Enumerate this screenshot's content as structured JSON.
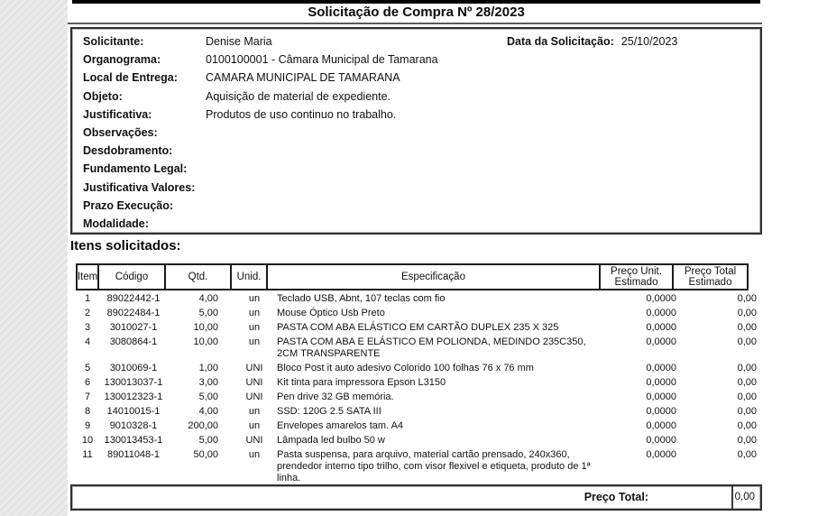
{
  "title": "Solicitação de Compra Nº 28/2023",
  "header": {
    "fields": [
      {
        "label": "Solicitante:",
        "value": "Denise Maria"
      },
      {
        "label": "Organograma:",
        "value": "0100100001 - Câmara Municipal de Tamarana"
      },
      {
        "label": "Local de Entrega:",
        "value": "CAMARA MUNICIPAL DE TAMARANA"
      },
      {
        "label": "Objeto:",
        "value": "Aquisição de material de expediente."
      },
      {
        "label": "Justificativa:",
        "value": "Produtos de uso continuo no trabalho."
      },
      {
        "label": "Observações:",
        "value": ""
      },
      {
        "label": "Desdobramento:",
        "value": ""
      },
      {
        "label": "Fundamento Legal:",
        "value": ""
      },
      {
        "label": "Justificativa Valores:",
        "value": ""
      },
      {
        "label": "Prazo Execução:",
        "value": ""
      },
      {
        "label": "Modalidade:",
        "value": ""
      }
    ],
    "date_label": "Data da Solicitação:",
    "date_value": "25/10/2023"
  },
  "items": {
    "heading": "Itens solicitados:",
    "columns": {
      "item": "Item",
      "codigo": "Código",
      "qtd": "Qtd.",
      "unid": "Unid.",
      "espec": "Especificação",
      "punit_l1": "Preço Unit.",
      "punit_l2": "Estimado",
      "ptotal_l1": "Preço Total",
      "ptotal_l2": "Estimado"
    },
    "rows": [
      {
        "item": "1",
        "codigo": "89022442-1",
        "qtd": "4,00",
        "unid": "un",
        "espec": "Teclado USB, Abnt, 107 teclas com fio",
        "punit": "0,0000",
        "ptotal": "0,00"
      },
      {
        "item": "2",
        "codigo": "89022484-1",
        "qtd": "5,00",
        "unid": "un",
        "espec": "Mouse Óptico Usb Preto",
        "punit": "0,0000",
        "ptotal": "0,00"
      },
      {
        "item": "3",
        "codigo": "3010027-1",
        "qtd": "10,00",
        "unid": "un",
        "espec": "PASTA COM ABA ELÁSTICO EM CARTÃO DUPLEX  235 X 325",
        "punit": "0,0000",
        "ptotal": "0,00"
      },
      {
        "item": "4",
        "codigo": "3080864-1",
        "qtd": "10,00",
        "unid": "un",
        "espec": "PASTA COM ABA E ELÁSTICO EM POLIONDA, MEDINDO 235C350, 2CM TRANSPARENTE",
        "punit": "0,0000",
        "ptotal": "0,00"
      },
      {
        "item": "5",
        "codigo": "3010069-1",
        "qtd": "1,00",
        "unid": "UNI",
        "espec": "Bloco Post it auto adesivo Colorido 100 folhas 76 x 76 mm",
        "punit": "0,0000",
        "ptotal": "0,00"
      },
      {
        "item": "6",
        "codigo": "130013037-1",
        "qtd": "3,00",
        "unid": "UNI",
        "espec": "Kit tinta para impressora Epson L3150",
        "punit": "0,0000",
        "ptotal": "0,00"
      },
      {
        "item": "7",
        "codigo": "130012323-1",
        "qtd": "5,00",
        "unid": "UNI",
        "espec": "Pen drive 32 GB memória.",
        "punit": "0,0000",
        "ptotal": "0,00"
      },
      {
        "item": "8",
        "codigo": "14010015-1",
        "qtd": "4,00",
        "unid": "un",
        "espec": "SSD: 120G 2.5 SATA III",
        "punit": "0,0000",
        "ptotal": "0,00"
      },
      {
        "item": "9",
        "codigo": "9010328-1",
        "qtd": "200,00",
        "unid": "un",
        "espec": "Envelopes amarelos tam. A4",
        "punit": "0,0000",
        "ptotal": "0,00"
      },
      {
        "item": "10",
        "codigo": "130013453-1",
        "qtd": "5,00",
        "unid": "UNI",
        "espec": "Lâmpada led bulbo 50 w",
        "punit": "0,0000",
        "ptotal": "0,00"
      },
      {
        "item": "11",
        "codigo": "89011048-1",
        "qtd": "50,00",
        "unid": "un",
        "espec": "Pasta suspensa, para arquivo, material cartão prensado, 240x360, prendedor interno tipo trilho, com visor flexivel e etiqueta, produto de 1ª linha.",
        "punit": "0,0000",
        "ptotal": "0,00"
      }
    ],
    "total": {
      "label": "Preço Total:",
      "value": "0,00"
    }
  },
  "colors": {
    "text": "#111111",
    "border": "#2f2f2f",
    "page_bg": "#ffffff",
    "gutter_bg": "#e8e8e8"
  }
}
